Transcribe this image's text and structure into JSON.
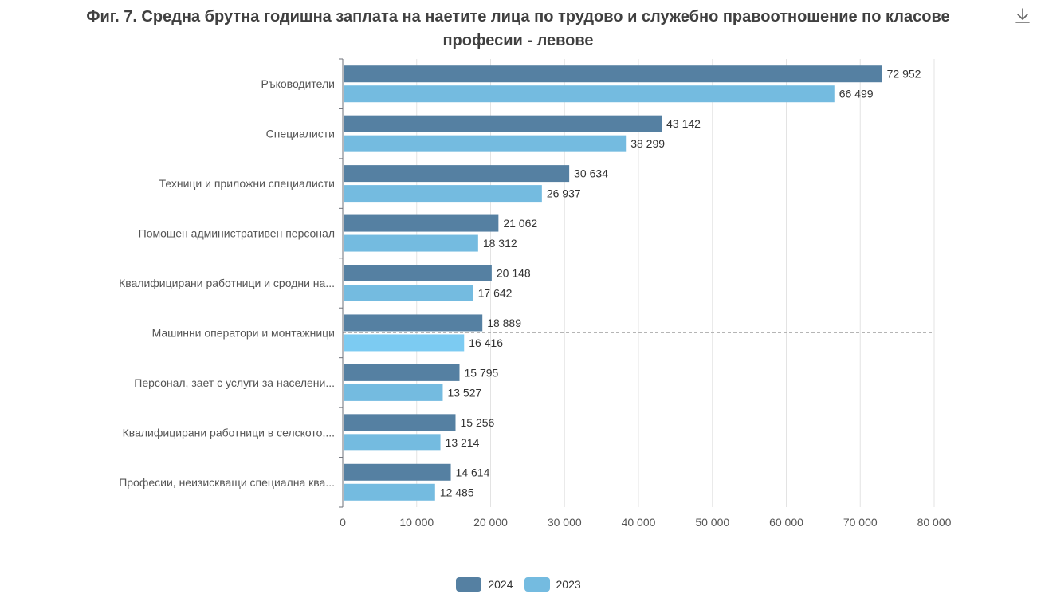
{
  "title": "Фиг. 7. Средна брутна годишна заплата на наетите лица по трудово и служебно правоотношение по класове професии - левове",
  "toolbar": {
    "download_icon": "download-icon"
  },
  "chart_data": {
    "type": "bar",
    "orientation": "horizontal",
    "title": "Фиг. 7. Средна брутна годишна заплата на наетите лица по трудово и служебно правоотношение по класове професии - левове",
    "categories": [
      "Ръководители",
      "Специалисти",
      "Техници и приложни специалисти",
      "Помощен административен персонал",
      "Квалифицирани работници и сродни на...",
      "Машинни оператори и монтажници",
      "Персонал, зает с услуги за населени...",
      "Квалифицирани работници в селското,...",
      "Професии, неизискващи специална ква..."
    ],
    "series": [
      {
        "name": "2024",
        "color": "#5580a2",
        "values": [
          72952,
          43142,
          30634,
          21062,
          20148,
          18889,
          15795,
          15256,
          14614
        ],
        "labels": [
          "72 952",
          "43 142",
          "30 634",
          "21 062",
          "20 148",
          "18 889",
          "15 795",
          "15 256",
          "14 614"
        ]
      },
      {
        "name": "2023",
        "color": "#74bbe0",
        "values": [
          66499,
          38299,
          26937,
          18312,
          17642,
          16416,
          13527,
          13214,
          12485
        ],
        "labels": [
          "66 499",
          "38 299",
          "26 937",
          "18 312",
          "17 642",
          "16 416",
          "13 527",
          "13 214",
          "12 485"
        ]
      }
    ],
    "xlim": [
      0,
      80000
    ],
    "xticks": [
      0,
      10000,
      20000,
      30000,
      40000,
      50000,
      60000,
      70000,
      80000
    ],
    "xtick_labels": [
      "0",
      "10 000",
      "20 000",
      "30 000",
      "40 000",
      "50 000",
      "60 000",
      "70 000",
      "80 000"
    ],
    "grid": "vertical",
    "highlighted_category": "Машинни оператори и монтажници",
    "legend": "bottom"
  }
}
